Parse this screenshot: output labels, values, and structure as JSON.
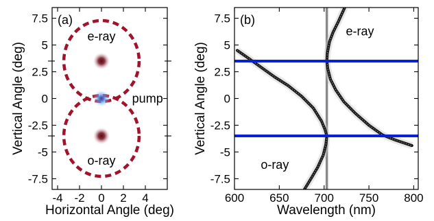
{
  "chart_data": [
    {
      "type": "scatter",
      "panel_label": "(a)",
      "xlabel": "Horizontal Angle (deg)",
      "ylabel": "Vertical Angle (deg)",
      "xlim": [
        -4.5,
        6
      ],
      "ylim": [
        -8.5,
        8.5
      ],
      "xticks": [
        -4,
        -2,
        0,
        2,
        4
      ],
      "yticks": [
        7.5,
        5,
        2.5,
        0,
        -2.5,
        -5,
        -7.5
      ],
      "ytick_labels": [
        "7.5",
        "5",
        "2.5",
        "0",
        "-2.5",
        "-5",
        "-7.5"
      ],
      "grid": false,
      "spots": [
        {
          "name": "e-ray",
          "x": 0,
          "y": 3.5,
          "color": "#6b0f1a"
        },
        {
          "name": "pump",
          "x": 0,
          "y": 0,
          "color": "#3a78e0"
        },
        {
          "name": "o-ray",
          "x": 0,
          "y": -3.5,
          "color": "#6b0f1a"
        }
      ],
      "rings": [
        {
          "center_x": 0,
          "center_y": 3.5,
          "radius": 3.5,
          "color": "#a0132a",
          "style": "dashed"
        },
        {
          "center_x": 0,
          "center_y": -3.5,
          "radius": 3.5,
          "color": "#a0132a",
          "style": "dashed"
        }
      ],
      "side_marks_y": [
        3.5,
        -3.5
      ],
      "annotations": [
        {
          "text": "e-ray",
          "x": 0,
          "y": 5.8
        },
        {
          "text": "o-ray",
          "x": 0,
          "y": -5.8
        },
        {
          "text": "pump",
          "x": 4.2,
          "y": 0
        }
      ]
    },
    {
      "type": "line",
      "panel_label": "(b)",
      "xlabel": "Wavelength (nm)",
      "ylabel": "Vertical Angle (deg)",
      "xlim": [
        600,
        805
      ],
      "ylim": [
        -8.5,
        8.5
      ],
      "xticks": [
        600,
        650,
        700,
        750,
        800
      ],
      "yticks": [
        7.5,
        5,
        2.5,
        0,
        -2.5,
        -5,
        -7.5
      ],
      "ytick_labels": [
        "7.5",
        "5",
        "2.5",
        "0",
        "-2.5",
        "-5",
        "-7.5"
      ],
      "grid": false,
      "series": [
        {
          "name": "e-ray",
          "color": "#1a1a1a",
          "points": [
            [
              703,
              3.5
            ],
            [
              704,
              2.8
            ],
            [
              707,
              1.8
            ],
            [
              713,
              0.8
            ],
            [
              722,
              -0.3
            ],
            [
              735,
              -1.4
            ],
            [
              750,
              -2.5
            ],
            [
              765,
              -3.4
            ],
            [
              780,
              -3.9
            ],
            [
              798,
              -4.4
            ],
            [
              703.5,
              4.2
            ],
            [
              706,
              5.3
            ],
            [
              710,
              6.2
            ],
            [
              716,
              7.2
            ],
            [
              723,
              8.5
            ]
          ]
        },
        {
          "name": "o-ray",
          "color": "#1a1a1a",
          "points": [
            [
              603,
              4.5
            ],
            [
              615,
              3.8
            ],
            [
              630,
              2.9
            ],
            [
              645,
              2.0
            ],
            [
              660,
              1.2
            ],
            [
              675,
              0.2
            ],
            [
              688,
              -0.9
            ],
            [
              697,
              -2.1
            ],
            [
              701,
              -2.9
            ],
            [
              703,
              -3.5
            ],
            [
              702,
              -4.3
            ],
            [
              699,
              -5.3
            ],
            [
              693,
              -6.4
            ],
            [
              686,
              -7.4
            ],
            [
              678,
              -8.5
            ]
          ]
        }
      ],
      "horizontal_lines": [
        {
          "y": 3.5,
          "color": "#0a20d8"
        },
        {
          "y": -3.5,
          "color": "#0a20d8"
        }
      ],
      "vertical_lines": [
        {
          "x": 703,
          "color": "#8a8a8a"
        }
      ],
      "annotations": [
        {
          "text": "e-ray",
          "x": 740,
          "y": 6.3
        },
        {
          "text": "o-ray",
          "x": 645,
          "y": -6.2
        }
      ]
    }
  ]
}
